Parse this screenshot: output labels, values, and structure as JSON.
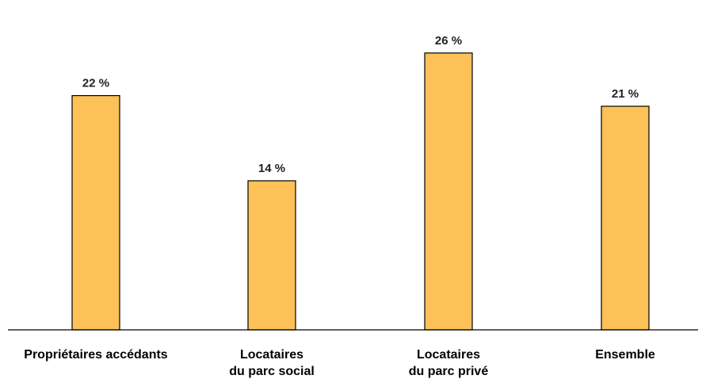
{
  "chart_data": {
    "type": "bar",
    "categories": [
      [
        "Propriétaires accédants"
      ],
      [
        "Locataires",
        "du parc social"
      ],
      [
        "Locataires",
        "du parc privé"
      ],
      [
        "Ensemble"
      ]
    ],
    "values": [
      22,
      14,
      26,
      21
    ],
    "value_labels": [
      "22 %",
      "14 %",
      "26 %",
      "21 %"
    ],
    "ylim": [
      0,
      28
    ],
    "grid": false,
    "legend": "none",
    "bar_color": "#fcc157",
    "bar_edge_color": "#000000"
  }
}
